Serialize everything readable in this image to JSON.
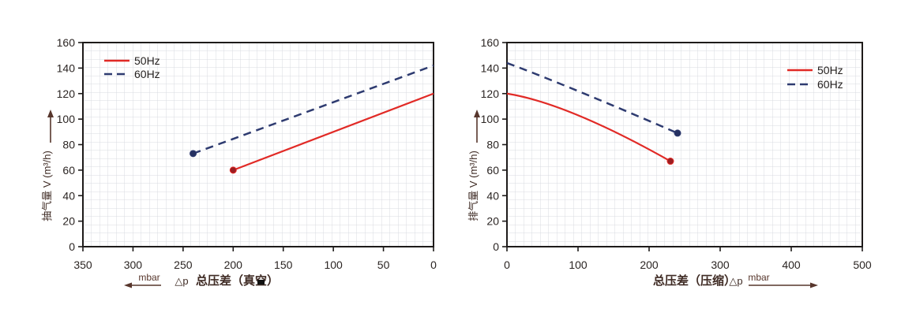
{
  "page": {
    "background": "#ffffff"
  },
  "colors": {
    "red": "#e12a26",
    "red_dot": "#9b1e22",
    "navy": "#2e3b70",
    "navy_dot": "#253061",
    "grid": "#d8dbe0",
    "axis": "#1e1b1a",
    "tick_text": "#2b2523",
    "label_text": "#3f2b24",
    "arrow": "#57362c",
    "black_mark": "#111111"
  },
  "legend": {
    "items": [
      {
        "label": "50Hz"
      },
      {
        "label": "60Hz"
      }
    ]
  },
  "chart_data": [
    {
      "type": "line",
      "name": "vacuum-flow-chart",
      "title": "",
      "xlabel_prefix": "△p",
      "xlabel": "总压差（真空）",
      "x_unit": "mbar",
      "x_direction": "right-to-left",
      "xlim": [
        0,
        350
      ],
      "x_ticks": [
        350,
        300,
        250,
        200,
        150,
        100,
        50,
        0
      ],
      "ylabel": "抽气量 V (m³/h)",
      "ylim": [
        0,
        160
      ],
      "y_ticks": [
        0,
        20,
        40,
        60,
        80,
        100,
        120,
        140,
        160
      ],
      "grid": "fine",
      "legend_position": "top-left",
      "series": [
        {
          "name": "50Hz",
          "line": "solid",
          "color_key": "red",
          "marker_color_key": "red_dot",
          "points": [
            [
              200,
              60
            ],
            [
              0,
              120
            ]
          ],
          "marker": [
            200,
            60
          ]
        },
        {
          "name": "60Hz",
          "line": "dashed",
          "color_key": "navy",
          "marker_color_key": "navy_dot",
          "points": [
            [
              240,
              73
            ],
            [
              0,
              142
            ]
          ],
          "marker": [
            240,
            73
          ]
        }
      ]
    },
    {
      "type": "line",
      "name": "compression-flow-chart",
      "title": "",
      "xlabel": "总压差（压缩）",
      "xlabel_suffix": "△p",
      "x_unit": "mbar",
      "x_direction": "left-to-right",
      "xlim": [
        0,
        500
      ],
      "x_ticks": [
        0,
        100,
        200,
        300,
        400,
        500
      ],
      "ylabel": "排气量 V (m³/h)",
      "ylim": [
        0,
        160
      ],
      "y_ticks": [
        0,
        20,
        40,
        60,
        80,
        100,
        120,
        140,
        160
      ],
      "grid": "fine",
      "legend_position": "top-right",
      "series": [
        {
          "name": "50Hz",
          "line": "solid",
          "color_key": "red",
          "marker_color_key": "red_dot",
          "points": [
            [
              0,
              120
            ],
            [
              100,
              103
            ],
            [
              230,
              67
            ]
          ],
          "marker": [
            230,
            67
          ]
        },
        {
          "name": "60Hz",
          "line": "dashed",
          "color_key": "navy",
          "marker_color_key": "navy_dot",
          "points": [
            [
              0,
              144
            ],
            [
              100,
              122
            ],
            [
              240,
              89
            ]
          ],
          "marker": [
            240,
            89
          ]
        }
      ]
    }
  ]
}
